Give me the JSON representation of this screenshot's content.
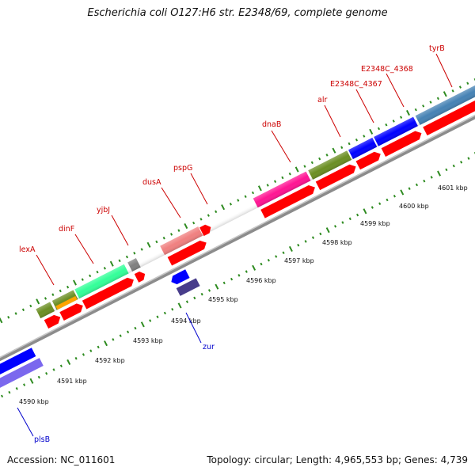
{
  "title": "Escherichia coli O127:H6 str. E2348/69, complete genome",
  "footer": {
    "accession": "Accession: NC_011601",
    "summary": "Topology: circular; Length: 4,965,553 bp; Genes: 4,739"
  },
  "kbp_labels": [
    "4590 kbp",
    "4591 kbp",
    "4592 kbp",
    "4593 kbp",
    "4594 kbp",
    "4595 kbp",
    "4596 kbp",
    "4597 kbp",
    "4598 kbp",
    "4599 kbp",
    "4600 kbp",
    "4601 kbp"
  ],
  "forward_genes": [
    {
      "label": "lexA",
      "color": "#cc0000"
    },
    {
      "label": "dinF",
      "color": "#cc0000"
    },
    {
      "label": "yjbJ",
      "color": "#cc0000"
    },
    {
      "label": "dusA",
      "color": "#cc0000"
    },
    {
      "label": "pspG",
      "color": "#cc0000"
    },
    {
      "label": "dnaB",
      "color": "#cc0000"
    },
    {
      "label": "alr",
      "color": "#cc0000"
    },
    {
      "label": "E2348C_4367",
      "color": "#cc0000"
    },
    {
      "label": "E2348C_4368",
      "color": "#cc0000"
    },
    {
      "label": "tyrB",
      "color": "#cc0000"
    }
  ],
  "reverse_genes": [
    {
      "label": "zur",
      "color": "#0000cc"
    },
    {
      "label": "plsB",
      "color": "#0000cc"
    }
  ],
  "colors": {
    "cds": "#ff0000",
    "backbone": "#8c8c8c",
    "tick": "#2e8b20"
  }
}
